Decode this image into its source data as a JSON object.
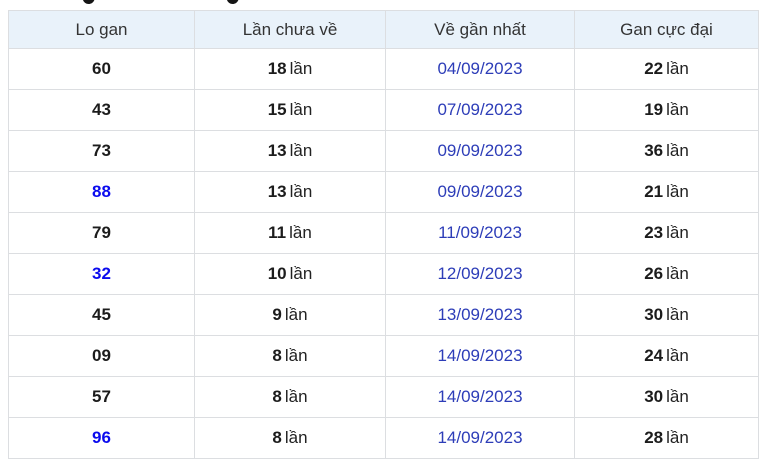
{
  "colors": {
    "header_background": "#e9f2fa",
    "border": "#dcdee1",
    "date_link_blue": "#2d3db8",
    "highlight_number_blue": "#0b0bee",
    "body_text": "#1c1c1c"
  },
  "table": {
    "unit": "lần",
    "columns": [
      "Lo gan",
      "Lần chưa về",
      "Về gần nhất",
      "Gan cực đại"
    ],
    "rows": [
      {
        "lo": "60",
        "times": "18",
        "date": "04/09/2023",
        "max": "22",
        "highlight": false
      },
      {
        "lo": "43",
        "times": "15",
        "date": "07/09/2023",
        "max": "19",
        "highlight": false
      },
      {
        "lo": "73",
        "times": "13",
        "date": "09/09/2023",
        "max": "36",
        "highlight": false
      },
      {
        "lo": "88",
        "times": "13",
        "date": "09/09/2023",
        "max": "21",
        "highlight": true
      },
      {
        "lo": "79",
        "times": "11",
        "date": "11/09/2023",
        "max": "23",
        "highlight": false
      },
      {
        "lo": "32",
        "times": "10",
        "date": "12/09/2023",
        "max": "26",
        "highlight": true
      },
      {
        "lo": "45",
        "times": "9",
        "date": "13/09/2023",
        "max": "30",
        "highlight": false
      },
      {
        "lo": "09",
        "times": "8",
        "date": "14/09/2023",
        "max": "24",
        "highlight": false
      },
      {
        "lo": "57",
        "times": "8",
        "date": "14/09/2023",
        "max": "30",
        "highlight": false
      },
      {
        "lo": "96",
        "times": "8",
        "date": "14/09/2023",
        "max": "28",
        "highlight": true
      }
    ]
  }
}
